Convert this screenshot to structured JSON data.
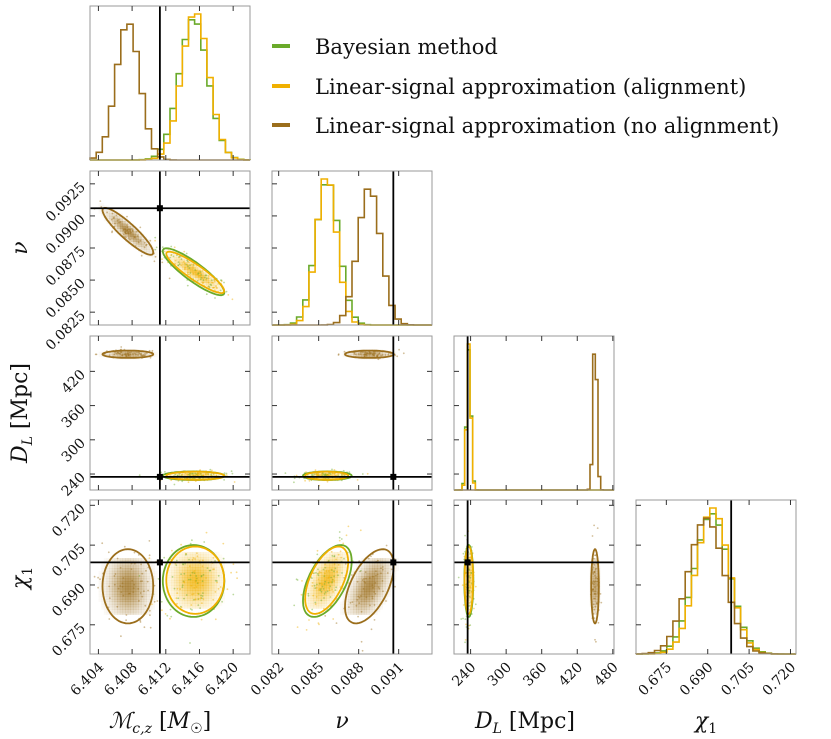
{
  "chart_data": {
    "type": "corner",
    "parameters": [
      {
        "key": "mc",
        "label": "𝓜c,z [M☉]",
        "range": [
          6.403,
          6.422
        ],
        "ticks": [
          6.404,
          6.408,
          6.412,
          6.416,
          6.42
        ],
        "tick_labels": [
          "6.404",
          "6.408",
          "6.412",
          "6.416",
          "6.420"
        ],
        "truth": 6.4113
      },
      {
        "key": "nu",
        "label": "ν",
        "range": [
          0.0815,
          0.0935
        ],
        "ticks": [
          0.0825,
          0.085,
          0.0875,
          0.09,
          0.0925
        ],
        "tick_labels": [
          "0.0825",
          "0.0850",
          "0.0875",
          "0.0900",
          "0.0925"
        ],
        "x_ticks": [
          0.082,
          0.085,
          0.088,
          0.091
        ],
        "x_tick_labels": [
          "0.082",
          "0.085",
          "0.088",
          "0.091"
        ],
        "truth": 0.0906
      },
      {
        "key": "dl",
        "label": "DL [Mpc]",
        "range": [
          212,
          482
        ],
        "ticks": [
          240,
          300,
          360,
          420
        ],
        "tick_labels": [
          "240",
          "300",
          "360",
          "420"
        ],
        "x_ticks": [
          240,
          300,
          360,
          420,
          480
        ],
        "x_tick_labels": [
          "240",
          "300",
          "360",
          "420",
          "480"
        ],
        "truth": 235
      },
      {
        "key": "chi",
        "label": "χ1",
        "range": [
          0.664,
          0.722
        ],
        "ticks": [
          0.675,
          0.69,
          0.705,
          0.72
        ],
        "tick_labels": [
          "0.675",
          "0.690",
          "0.705",
          "0.720"
        ],
        "x_ticks": [
          0.675,
          0.69,
          0.705,
          0.72
        ],
        "x_tick_labels": [
          "0.675",
          "0.690",
          "0.705",
          "0.720"
        ],
        "truth": 0.6985
      }
    ],
    "axis_labels": {
      "mc": "𝓜c,z [M☉]",
      "nu": "ν",
      "dl": "DL [Mpc]",
      "chi": "χ1"
    },
    "series": [
      {
        "name": "Bayesian method",
        "color": "#6aaa2a",
        "mean": {
          "mc": 6.4153,
          "nu": 0.08565,
          "dl": 237,
          "chi": 0.6915
        },
        "sd": {
          "mc": 0.0017,
          "nu": 0.00085,
          "dl": 3.5,
          "chi": 0.0063
        },
        "corr": {
          "mc-nu": -0.88,
          "mc-dl": 0.0,
          "mc-chi": 0.0,
          "nu-dl": 0.0,
          "nu-chi": 0.55,
          "dl-chi": 0.0
        }
      },
      {
        "name": "Linear-signal approximation (alignment)",
        "color": "#f0b000",
        "mean": {
          "mc": 6.4155,
          "nu": 0.0856,
          "dl": 237,
          "chi": 0.6918
        },
        "sd": {
          "mc": 0.0016,
          "nu": 0.00075,
          "dl": 3.3,
          "chi": 0.0059
        },
        "corr": {
          "mc-nu": -0.9,
          "mc-dl": 0.0,
          "mc-chi": 0.0,
          "nu-dl": 0.0,
          "nu-chi": 0.55,
          "dl-chi": 0.0
        }
      },
      {
        "name": "Linear-signal approximation (no alignment)",
        "color": "#9b6e1c",
        "mean": {
          "mc": 6.4075,
          "nu": 0.0888,
          "dl": 450,
          "chi": 0.6895
        },
        "sd": {
          "mc": 0.0014,
          "nu": 0.00085,
          "dl": 3.0,
          "chi": 0.0065
        },
        "corr": {
          "mc-nu": -0.9,
          "mc-dl": 0.0,
          "mc-chi": 0.0,
          "nu-dl": 0.0,
          "nu-chi": 0.55,
          "dl-chi": 0.0
        }
      }
    ],
    "legend_position": "top-right",
    "truth_lines": true
  }
}
